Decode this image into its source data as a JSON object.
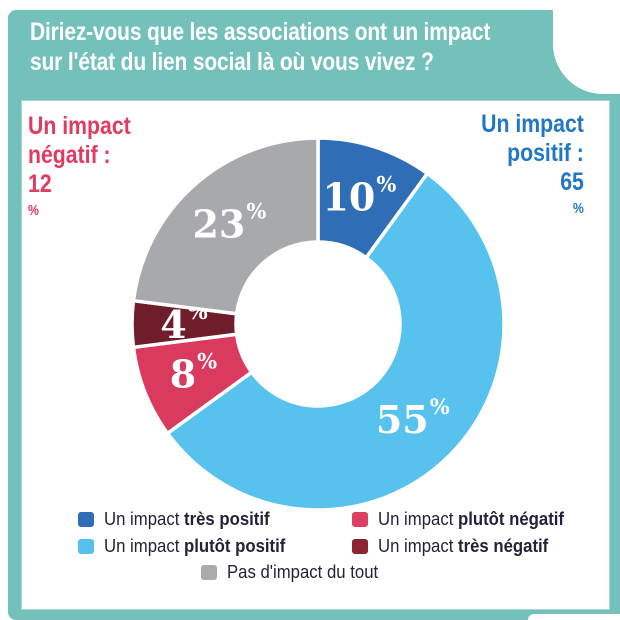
{
  "header": {
    "title_line1": "Diriez-vous que les associations ont un impact",
    "title_line2": "sur l'état du lien social là où vous vivez ?"
  },
  "annotations": {
    "negative": {
      "line1": "Un impact",
      "line2_prefix": "négatif : ",
      "value": "12",
      "percent_sign": "%",
      "color": "#e23a60"
    },
    "positive": {
      "line1": "Un impact",
      "line2_prefix": "positif : ",
      "value": "65",
      "percent_sign": "%",
      "color": "#2277c4"
    }
  },
  "chart_data": {
    "type": "pie",
    "donut": true,
    "title": "Diriez-vous que les associations ont un impact sur l'état du lien social là où vous vivez ?",
    "start_angle_deg": 0,
    "direction": "clockwise",
    "separator_color": "#ffffff",
    "label_color": "#ffffff",
    "categories": [
      "Un impact très positif",
      "Un impact plutôt positif",
      "Un impact plutôt négatif",
      "Un impact très négatif",
      "Pas d'impact du tout"
    ],
    "values": [
      10,
      55,
      8,
      4,
      23
    ],
    "segments": [
      {
        "label": "Un impact très positif",
        "value": 10,
        "display": "10",
        "percent_sign": "%",
        "color": "#2f6eb6"
      },
      {
        "label": "Un impact plutôt positif",
        "value": 55,
        "display": "55",
        "percent_sign": "%",
        "color": "#58c2ef"
      },
      {
        "label": "Un impact plutôt négatif",
        "value": 8,
        "display": "8",
        "percent_sign": "%",
        "color": "#d93a5e"
      },
      {
        "label": "Un impact très négatif",
        "value": 4,
        "display": "4",
        "percent_sign": "%",
        "color": "#701d2b"
      },
      {
        "label": "Pas d'impact du tout",
        "value": 23,
        "display": "23",
        "percent_sign": "%",
        "color": "#a8a9ad"
      }
    ],
    "aggregates": {
      "positif_total": "65",
      "negatif_total": "12"
    }
  },
  "legend": {
    "items": [
      {
        "prefix": "Un impact ",
        "bold": "très positif",
        "color": "#2f6eb6"
      },
      {
        "prefix": "Un impact ",
        "bold": "plutôt positif",
        "color": "#56c1ef"
      },
      {
        "prefix": "Un impact ",
        "bold": "plutôt négatif",
        "color": "#de4061"
      },
      {
        "prefix": "Un impact ",
        "bold": "très négatif",
        "color": "#8c2433"
      },
      {
        "prefix": "Pas d'impact du tout",
        "bold": "",
        "color": "#a9abaf"
      }
    ]
  },
  "colors": {
    "frame_teal": "#74c1bc",
    "panel_border": "#a8d8d4",
    "background": "#ffffff",
    "legend_text": "#262139"
  }
}
